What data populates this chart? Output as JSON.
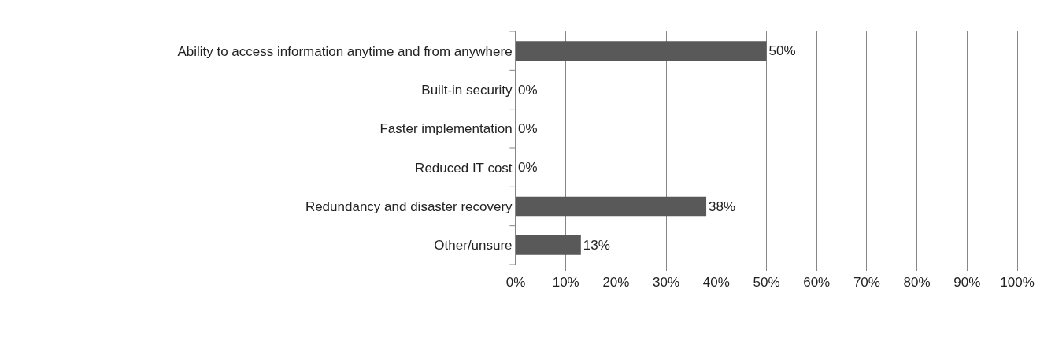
{
  "chart_data": {
    "type": "bar",
    "orientation": "horizontal",
    "categories": [
      "Ability to access information anytime and from anywhere",
      "Built-in security",
      "Faster implementation",
      "Reduced IT cost",
      "Redundancy and disaster recovery",
      "Other/unsure"
    ],
    "values": [
      50,
      0,
      0,
      0,
      38,
      13
    ],
    "value_labels": [
      "50%",
      "0%",
      "0%",
      "0%",
      "38%",
      "13%"
    ],
    "color": "#595959",
    "xlim": [
      0,
      100
    ],
    "xticks": [
      {
        "value": 0,
        "label": "0%"
      },
      {
        "value": 10,
        "label": "10%"
      },
      {
        "value": 20,
        "label": "20%"
      },
      {
        "value": 30,
        "label": "30%"
      },
      {
        "value": 40,
        "label": "40%"
      },
      {
        "value": 50,
        "label": "50%"
      },
      {
        "value": 60,
        "label": "60%"
      },
      {
        "value": 70,
        "label": "70%"
      },
      {
        "value": 80,
        "label": "80%"
      },
      {
        "value": 90,
        "label": "90%"
      },
      {
        "value": 100,
        "label": "100%"
      }
    ],
    "grid": "x",
    "legend": false
  }
}
